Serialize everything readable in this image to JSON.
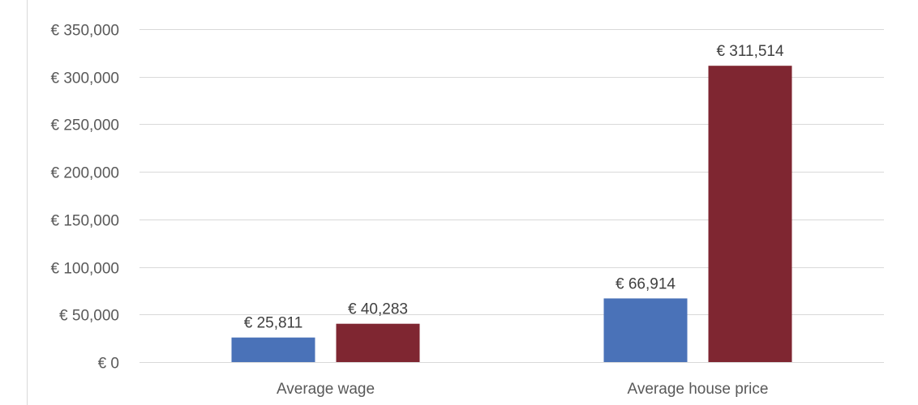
{
  "chart_data": {
    "type": "bar",
    "categories": [
      "Average wage",
      "Average house price"
    ],
    "series": [
      {
        "values": [
          25811,
          66914
        ],
        "labels": [
          "€ 25,811",
          "€ 66,914"
        ]
      },
      {
        "values": [
          40283,
          311514
        ],
        "labels": [
          "€ 40,283",
          "€ 311,514"
        ]
      }
    ],
    "title": "",
    "xlabel": "",
    "ylabel": "",
    "ylim": [
      0,
      350000
    ],
    "yticks": [
      0,
      50000,
      100000,
      150000,
      200000,
      250000,
      300000,
      350000
    ],
    "ytick_labels": [
      "€ 0",
      "€ 50,000",
      "€ 100,000",
      "€ 150,000",
      "€ 200,000",
      "€ 250,000",
      "€ 300,000",
      "€ 350,000"
    ],
    "grid": true,
    "colors": [
      "#4a72b8",
      "#7f2631"
    ],
    "gridline_color": "#d9d9d9"
  }
}
